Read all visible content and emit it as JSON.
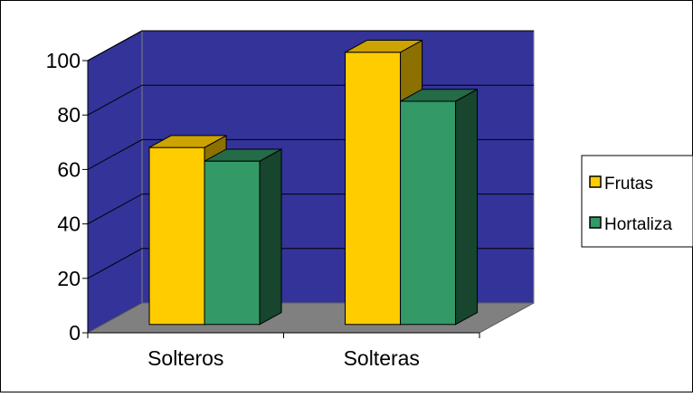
{
  "chart_data": {
    "type": "bar",
    "title": "",
    "xlabel": "",
    "ylabel": "",
    "categories": [
      "Solteros",
      "Solteras"
    ],
    "series": [
      {
        "name": "Frutas",
        "values": [
          65,
          100
        ],
        "color": "#FFCC00"
      },
      {
        "name": "Hortaliza",
        "values": [
          60,
          82
        ],
        "color": "#339966"
      }
    ],
    "ylim": [
      0,
      100
    ],
    "yticks": [
      "0",
      "20",
      "40",
      "60",
      "80",
      "100"
    ],
    "grid": true,
    "legend": "right",
    "style": "3d-clustered-column",
    "colors": {
      "back_wall": "#333399",
      "side_wall": "#333399",
      "floor": "#808080",
      "gridline": "#000000",
      "frame": "#000000"
    }
  }
}
